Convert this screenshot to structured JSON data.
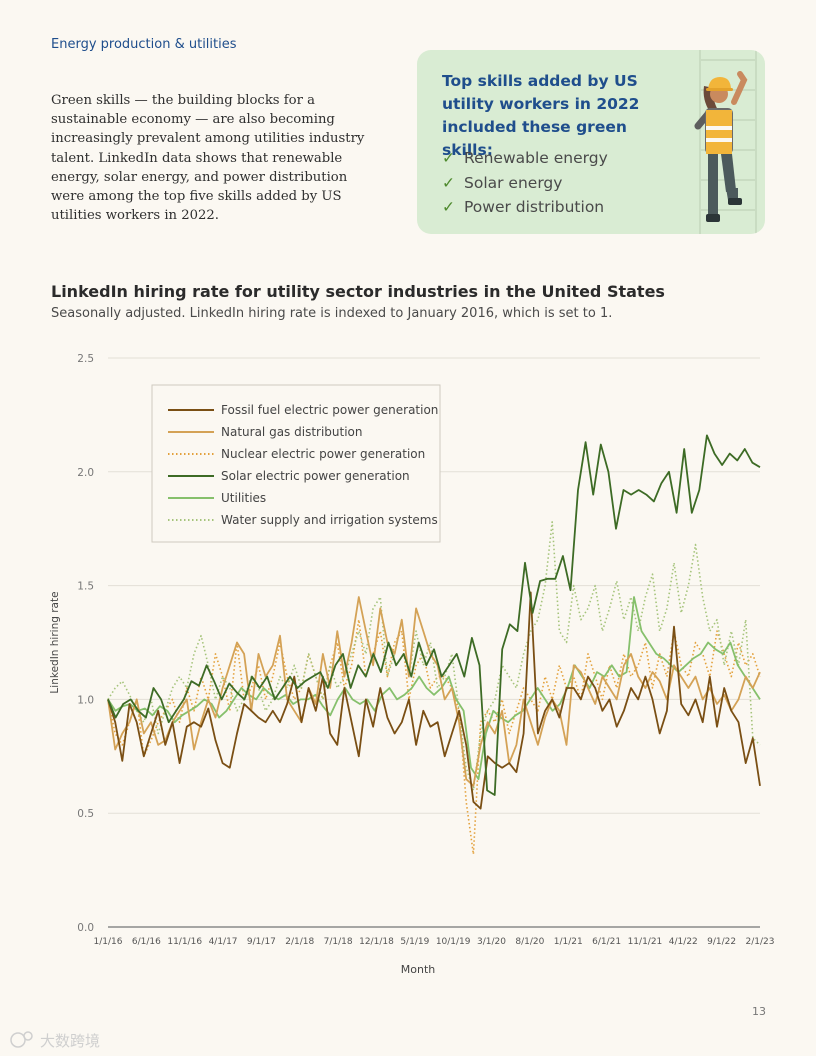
{
  "header": {
    "section": "Energy production & utilities"
  },
  "intro": {
    "text": "Green skills — the building blocks for a sustainable economy — are also becoming increasingly prevalent among utilities industry talent. LinkedIn data shows that renewable energy, solar energy, and power distribution were among the top five skills added by US utilities workers in 2022."
  },
  "callout": {
    "title": "Top skills added by US utility workers in 2022 included these green skills:",
    "skills": [
      "Renewable energy",
      "Solar energy",
      "Power distribution"
    ],
    "check_icon": "checkmark-icon",
    "illustration": "utility-worker-on-ladder"
  },
  "colors": {
    "background": "#fbf8f2",
    "callout_bg": "#d9ecd3",
    "title_blue": "#1f4e8c",
    "fossil": "#7a4f14",
    "natural_gas": "#d4a256",
    "nuclear": "#e3a13c",
    "solar": "#3d6b25",
    "utilities": "#86c06c",
    "water": "#a6c47c"
  },
  "chart_data": {
    "type": "line",
    "title": "LinkedIn hiring rate for utility sector industries in the United States",
    "subtitle": "Seasonally adjusted. LinkedIn hiring rate is indexed to January 2016, which is set to 1.",
    "xlabel": "Month",
    "ylabel": "LinkedIn hiring rate",
    "ylim": [
      0,
      2.5
    ],
    "yticks": [
      "0.0",
      "0.5",
      "1.0",
      "1.5",
      "2.0",
      "2.5"
    ],
    "xticks": [
      "1/1/16",
      "6/1/16",
      "11/1/16",
      "4/1/17",
      "9/1/17",
      "2/1/18",
      "7/1/18",
      "12/1/18",
      "5/1/19",
      "10/1/19",
      "3/1/20",
      "8/1/20",
      "1/1/21",
      "6/1/21",
      "11/1/21",
      "4/1/22",
      "9/1/22",
      "2/1/23"
    ],
    "grid": true,
    "legend_position": "top-left",
    "series": [
      {
        "name": "Fossil fuel electric power generation",
        "style": "solid",
        "color": "#7a4f14",
        "values": [
          1.0,
          0.9,
          0.73,
          0.98,
          0.9,
          0.75,
          0.85,
          0.95,
          0.8,
          0.9,
          0.72,
          0.88,
          0.9,
          0.88,
          0.96,
          0.82,
          0.72,
          0.7,
          0.85,
          0.98,
          0.95,
          0.92,
          0.9,
          0.95,
          0.9,
          0.98,
          1.1,
          0.9,
          1.05,
          0.95,
          1.1,
          0.85,
          0.8,
          1.05,
          0.9,
          0.75,
          1.0,
          0.88,
          1.05,
          0.92,
          0.85,
          0.9,
          1.0,
          0.8,
          0.95,
          0.88,
          0.9,
          0.75,
          0.85,
          0.95,
          0.8,
          0.55,
          0.52,
          0.75,
          0.72,
          0.7,
          0.72,
          0.68,
          0.85,
          1.47,
          0.85,
          0.95,
          1.0,
          0.92,
          1.05,
          1.05,
          1.0,
          1.1,
          1.05,
          0.95,
          1.0,
          0.88,
          0.95,
          1.05,
          1.0,
          1.1,
          1.0,
          0.85,
          0.95,
          1.32,
          0.98,
          0.93,
          1.0,
          0.9,
          1.1,
          0.88,
          1.05,
          0.95,
          0.9,
          0.72,
          0.83,
          0.62
        ]
      },
      {
        "name": "Natural gas distribution",
        "style": "solid",
        "color": "#d4a256",
        "values": [
          1.0,
          0.78,
          0.85,
          0.9,
          1.0,
          0.85,
          0.9,
          0.8,
          0.82,
          0.9,
          0.95,
          1.0,
          0.78,
          0.9,
          1.0,
          0.92,
          1.05,
          1.15,
          1.25,
          1.2,
          0.95,
          1.2,
          1.1,
          1.15,
          1.28,
          1.0,
          0.95,
          0.9,
          1.05,
          0.98,
          1.2,
          1.05,
          1.3,
          1.1,
          1.25,
          1.45,
          1.3,
          1.15,
          1.4,
          1.25,
          1.2,
          1.35,
          1.1,
          1.4,
          1.3,
          1.2,
          1.15,
          1.0,
          1.05,
          0.9,
          0.65,
          0.62,
          0.8,
          0.9,
          0.85,
          0.95,
          0.72,
          0.8,
          1.0,
          0.9,
          0.8,
          0.92,
          1.0,
          0.95,
          0.8,
          1.15,
          1.12,
          1.05,
          0.98,
          1.1,
          1.05,
          1.0,
          1.15,
          1.2,
          1.1,
          1.05,
          1.12,
          1.08,
          1.0,
          1.15,
          1.1,
          1.05,
          1.1,
          1.0,
          1.05,
          0.98,
          1.02,
          0.95,
          1.0,
          1.1,
          1.05,
          1.12
        ]
      },
      {
        "name": "Nuclear electric power generation",
        "style": "dotted",
        "color": "#e3a13c",
        "values": [
          1.0,
          0.85,
          0.8,
          0.9,
          1.0,
          0.75,
          0.82,
          0.9,
          0.95,
          1.0,
          0.9,
          1.05,
          0.95,
          1.1,
          1.0,
          1.2,
          1.1,
          0.95,
          1.25,
          1.0,
          1.05,
          1.15,
          1.0,
          1.1,
          1.25,
          1.1,
          1.0,
          1.05,
          1.2,
          1.1,
          1.0,
          1.15,
          1.25,
          1.05,
          1.15,
          1.35,
          1.1,
          1.2,
          1.3,
          1.1,
          1.25,
          1.3,
          1.0,
          1.15,
          1.2,
          1.05,
          1.1,
          1.1,
          1.05,
          0.95,
          0.55,
          0.32,
          0.9,
          0.95,
          0.9,
          1.0,
          0.85,
          0.95,
          1.05,
          1.0,
          0.95,
          1.1,
          1.0,
          1.15,
          1.05,
          1.1,
          1.0,
          1.2,
          1.1,
          1.0,
          1.15,
          1.05,
          1.2,
          1.1,
          1.15,
          1.25,
          1.05,
          1.2,
          1.1,
          1.3,
          1.15,
          1.1,
          1.25,
          1.2,
          1.1,
          1.3,
          1.2,
          1.1,
          1.25,
          1.15,
          1.2,
          1.1
        ]
      },
      {
        "name": "Solar electric power generation",
        "style": "solid",
        "color": "#3d6b25",
        "values": [
          1.0,
          0.92,
          0.98,
          1.0,
          0.95,
          0.92,
          1.05,
          1.0,
          0.9,
          0.95,
          1.0,
          1.08,
          1.06,
          1.15,
          1.08,
          1.0,
          1.07,
          1.03,
          1.0,
          1.1,
          1.05,
          1.1,
          1.0,
          1.05,
          1.1,
          1.05,
          1.08,
          1.1,
          1.12,
          1.05,
          1.15,
          1.2,
          1.05,
          1.15,
          1.1,
          1.2,
          1.12,
          1.25,
          1.15,
          1.2,
          1.1,
          1.25,
          1.15,
          1.22,
          1.1,
          1.15,
          1.2,
          1.1,
          1.27,
          1.15,
          0.6,
          0.58,
          1.22,
          1.33,
          1.3,
          1.6,
          1.38,
          1.52,
          1.53,
          1.53,
          1.63,
          1.48,
          1.92,
          2.13,
          1.9,
          2.12,
          2.0,
          1.75,
          1.92,
          1.9,
          1.92,
          1.9,
          1.87,
          1.95,
          2.0,
          1.82,
          2.1,
          1.82,
          1.92,
          2.16,
          2.08,
          2.03,
          2.08,
          2.05,
          2.1,
          2.04,
          2.02
        ]
      },
      {
        "name": "Utilities",
        "style": "solid",
        "color": "#86c06c",
        "values": [
          1.0,
          0.95,
          0.97,
          0.98,
          0.95,
          0.96,
          0.93,
          0.97,
          0.95,
          0.9,
          0.93,
          0.95,
          0.97,
          1.0,
          0.98,
          0.92,
          0.95,
          1.0,
          1.05,
          1.02,
          1.0,
          1.05,
          1.02,
          1.0,
          1.02,
          0.98,
          1.0,
          1.0,
          1.02,
          0.97,
          0.93,
          1.0,
          1.05,
          1.0,
          0.98,
          1.0,
          0.95,
          1.02,
          1.05,
          1.0,
          1.02,
          1.05,
          1.1,
          1.05,
          1.02,
          1.05,
          1.1,
          1.0,
          0.95,
          0.7,
          0.65,
          0.85,
          0.95,
          0.92,
          0.9,
          0.93,
          0.95,
          1.0,
          1.05,
          1.0,
          0.95,
          0.98,
          1.05,
          1.15,
          1.1,
          1.05,
          1.12,
          1.1,
          1.15,
          1.1,
          1.12,
          1.45,
          1.3,
          1.25,
          1.2,
          1.18,
          1.15,
          1.12,
          1.15,
          1.18,
          1.2,
          1.25,
          1.22,
          1.2,
          1.25,
          1.15,
          1.1,
          1.05,
          1.0
        ]
      },
      {
        "name": "Water supply and irrigation systems",
        "style": "dotted",
        "color": "#a6c47c",
        "values": [
          1.0,
          1.05,
          1.08,
          1.02,
          0.95,
          0.9,
          1.0,
          0.85,
          0.95,
          1.05,
          1.1,
          1.05,
          1.2,
          1.28,
          1.15,
          1.0,
          1.1,
          1.05,
          0.95,
          1.0,
          1.1,
          1.05,
          0.95,
          1.0,
          1.1,
          1.05,
          1.15,
          1.05,
          1.2,
          1.1,
          1.0,
          1.15,
          1.05,
          1.1,
          1.2,
          1.3,
          1.2,
          1.4,
          1.45,
          1.1,
          1.2,
          1.35,
          1.1,
          1.3,
          1.15,
          1.25,
          1.05,
          1.1,
          1.2,
          0.95,
          0.7,
          0.6,
          0.85,
          0.95,
          1.0,
          1.15,
          1.1,
          1.05,
          1.2,
          1.3,
          1.35,
          1.5,
          1.78,
          1.3,
          1.25,
          1.5,
          1.35,
          1.4,
          1.5,
          1.3,
          1.4,
          1.52,
          1.35,
          1.45,
          1.3,
          1.45,
          1.55,
          1.3,
          1.4,
          1.6,
          1.38,
          1.5,
          1.68,
          1.45,
          1.3,
          1.35,
          1.15,
          1.3,
          1.15,
          1.35,
          0.83,
          0.8
        ]
      }
    ]
  },
  "footer": {
    "page_number": "13",
    "watermark": "大数跨境"
  }
}
